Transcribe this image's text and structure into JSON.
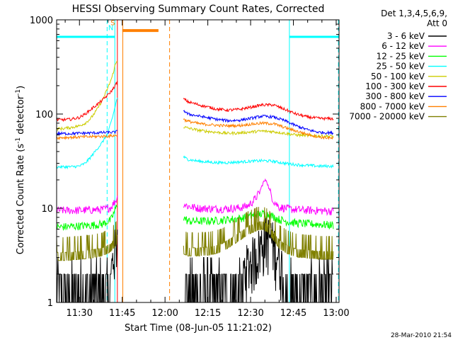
{
  "chart_data": {
    "type": "line",
    "title": "HESSI Observing Summary Count Rates, Corrected",
    "xlabel": "Start Time (08-Jun-05 11:21:02)",
    "ylabel_main": "Corrected Count Rate (s",
    "ylabel_sup1": "-1",
    "ylabel_mid": " detector",
    "ylabel_sup2": "-1",
    "ylabel_end": ")",
    "y_scale": "log",
    "ylim": [
      1,
      1000
    ],
    "xlim_minutes": [
      682,
      781
    ],
    "x_ticks": [
      {
        "m": 690,
        "label": "11:30"
      },
      {
        "m": 705,
        "label": "11:45"
      },
      {
        "m": 720,
        "label": "12:00"
      },
      {
        "m": 735,
        "label": "12:15"
      },
      {
        "m": 750,
        "label": "12:30"
      },
      {
        "m": 765,
        "label": "12:45"
      },
      {
        "m": 780,
        "label": "13:00"
      }
    ],
    "y_ticks": [
      {
        "v": 1,
        "label": "1"
      },
      {
        "v": 10,
        "label": "10"
      },
      {
        "v": 100,
        "label": "100"
      },
      {
        "v": 1000,
        "label": "1000"
      }
    ],
    "legend_title": [
      "Det 1,3,4,5,6,9,",
      "Att 0"
    ],
    "series": [
      {
        "name": "3 - 6 keV",
        "color": "#000000",
        "segments": [
          {
            "x": [
              682,
              686,
              690,
              694,
              698,
              701,
              702,
              703,
              703.3
            ],
            "y": [
              1.4,
              1.4,
              1.4,
              1.4,
              1.5,
              2.0,
              3.2,
              4.5,
              5.2
            ]
          },
          {
            "x": [
              726.5,
              730,
              735,
              740,
              744,
              747,
              749,
              751,
              753,
              755,
              757,
              760,
              763,
              767,
              772,
              777,
              779
            ],
            "y": [
              1.4,
              1.4,
              1.4,
              1.5,
              1.7,
              2.1,
              2.6,
              3.1,
              3.8,
              5.0,
              5.0,
              3.0,
              1.6,
              1.4,
              1.4,
              1.4,
              1.4
            ]
          }
        ]
      },
      {
        "name": "6 - 12 keV",
        "color": "#ff00ff",
        "segments": [
          {
            "x": [
              682,
              686,
              690,
              694,
              698,
              701,
              702,
              703,
              703.3
            ],
            "y": [
              9.5,
              9.5,
              9.5,
              9.6,
              9.7,
              10.2,
              11.3,
              12.5,
              13
            ]
          },
          {
            "x": [
              726.5,
              728,
              732,
              738,
              742,
              746,
              749,
              751,
              753,
              754.5,
              755.5,
              756.5,
              758,
              760,
              764,
              768,
              772,
              776,
              779
            ],
            "y": [
              11.2,
              10.5,
              10,
              9.9,
              9.9,
              10.1,
              10.6,
              12,
              14.5,
              19,
              20,
              16,
              12,
              10.3,
              9.8,
              9.6,
              9.5,
              9.4,
              9.3
            ]
          }
        ]
      },
      {
        "name": "12 - 25 keV",
        "color": "#00ff00",
        "segments": [
          {
            "x": [
              682,
              686,
              690,
              694,
              698,
              701,
              702,
              703,
              703.3
            ],
            "y": [
              6.3,
              6.4,
              6.5,
              6.6,
              6.8,
              7.5,
              8.8,
              10.5,
              11
            ]
          },
          {
            "x": [
              726.5,
              728,
              732,
              738,
              742,
              746,
              749,
              752,
              755,
              757,
              760,
              764,
              768,
              772,
              776,
              779
            ],
            "y": [
              8,
              7.3,
              7.3,
              7.4,
              7.6,
              7.8,
              8.1,
              8.6,
              8.8,
              8.4,
              7.6,
              7.1,
              6.9,
              6.8,
              6.7,
              6.6
            ]
          }
        ]
      },
      {
        "name": "25 - 50 keV",
        "color": "#00ffff",
        "segments": [
          {
            "x": [
              682,
              684,
              687,
              690,
              692,
              694,
              696,
              698,
              700,
              701.5,
              702.5,
              703.3
            ],
            "y": [
              27.5,
              27.5,
              27.5,
              28,
              30,
              35,
              42,
              50,
              63,
              90,
              120,
              150
            ]
          },
          {
            "x": [
              726.5,
              728,
              732,
              738,
              742,
              746,
              750,
              754,
              758,
              762,
              766,
              770,
              774,
              779
            ],
            "y": [
              35,
              33,
              31.5,
              30.5,
              30.5,
              31,
              31.5,
              32,
              31.5,
              30,
              29,
              28.5,
              28,
              28
            ]
          }
        ]
      },
      {
        "name": "50 - 100 keV",
        "color": "#cccc00",
        "segments": [
          {
            "x": [
              682,
              684,
              687,
              690,
              692,
              694,
              696,
              698,
              700,
              701.5,
              702.5,
              703.3
            ],
            "y": [
              70,
              70,
              72,
              75,
              80,
              90,
              110,
              140,
              190,
              250,
              330,
              370
            ]
          },
          {
            "x": [
              726.5,
              728,
              732,
              738,
              742,
              746,
              750,
              754,
              758,
              762,
              766,
              770,
              774,
              779
            ],
            "y": [
              73,
              71,
              67,
              64,
              62.5,
              63,
              64.5,
              66,
              65,
              62.5,
              60,
              59,
              58.5,
              58
            ]
          }
        ]
      },
      {
        "name": "100 - 300 keV",
        "color": "#ff0000",
        "segments": [
          {
            "x": [
              682,
              684,
              687,
              690,
              692,
              694,
              696,
              698,
              700,
              701.5,
              702.5,
              703.3
            ],
            "y": [
              87,
              87,
              88,
              92,
              100,
              112,
              125,
              140,
              160,
              180,
              200,
              220
            ]
          },
          {
            "x": [
              726.5,
              728,
              732,
              738,
              742,
              746,
              750,
              754,
              758,
              762,
              766,
              770,
              774,
              779
            ],
            "y": [
              145,
              135,
              125,
              113,
              110,
              112,
              118,
              125,
              125,
              112,
              100,
              93,
              90,
              89
            ]
          }
        ]
      },
      {
        "name": "300 - 800 keV",
        "color": "#0000ff",
        "segments": [
          {
            "x": [
              682,
              686,
              690,
              694,
              698,
              701,
              702,
              703,
              703.3
            ],
            "y": [
              62,
              62,
              62.5,
              63,
              63.5,
              64,
              64,
              65,
              65
            ]
          },
          {
            "x": [
              726.5,
              728,
              732,
              738,
              742,
              746,
              750,
              754,
              758,
              762,
              766,
              770,
              774,
              779
            ],
            "y": [
              110,
              100,
              95,
              88,
              85,
              86,
              90,
              95,
              93,
              85,
              75,
              68,
              64,
              63
            ]
          }
        ]
      },
      {
        "name": "800 - 7000 keV",
        "color": "#ff8000",
        "segments": [
          {
            "x": [
              682,
              686,
              690,
              694,
              698,
              701,
              702,
              703,
              703.3
            ],
            "y": [
              56,
              56.5,
              57,
              57.5,
              58,
              58.5,
              59,
              59,
              59
            ]
          },
          {
            "x": [
              726.5,
              728,
              732,
              738,
              742,
              746,
              750,
              754,
              758,
              762,
              766,
              770,
              774,
              779
            ],
            "y": [
              88,
              84,
              79,
              76,
              75,
              75.5,
              78,
              80,
              79,
              72,
              66,
              61,
              57,
              55
            ]
          }
        ]
      },
      {
        "name": "7000 - 20000 keV",
        "color": "#808000",
        "segments": [
          {
            "x": [
              682,
              686,
              690,
              694,
              698,
              701,
              702,
              703,
              703.3
            ],
            "y": [
              3.4,
              3.4,
              3.5,
              3.6,
              3.8,
              4.2,
              4.6,
              5.0,
              5.2
            ]
          },
          {
            "x": [
              726.5,
              728,
              732,
              736,
              740,
              743,
              746,
              749,
              752,
              754,
              756,
              758,
              760,
              763,
              766,
              770,
              774,
              779
            ],
            "y": [
              4,
              3.8,
              3.8,
              3.9,
              4.2,
              4.8,
              5.5,
              6.4,
              7,
              7.3,
              6.8,
              5.6,
              4.6,
              4,
              3.7,
              3.6,
              3.5,
              3.5
            ]
          }
        ]
      }
    ],
    "flag_bars": [
      {
        "color": "#00ffff",
        "y": 660,
        "x": [
          682,
          702.4
        ]
      },
      {
        "color": "#ff8000",
        "y": 770,
        "x": [
          705,
          717.7
        ]
      },
      {
        "color": "#00ffff",
        "y": 660,
        "x": [
          763.6,
          780.8
        ]
      }
    ],
    "vlines": [
      {
        "m": 699.7,
        "color": "#00ffff",
        "dash": true
      },
      {
        "m": 702.4,
        "color": "#00ffff",
        "dash": false
      },
      {
        "m": 703.3,
        "color": "#ff0000",
        "dash": false
      },
      {
        "m": 705.2,
        "color": "#ff8000",
        "dash": false
      },
      {
        "m": 721.6,
        "color": "#ff8000",
        "dash": true
      },
      {
        "m": 763.6,
        "color": "#00ffff",
        "dash": false
      },
      {
        "m": 780.8,
        "color": "#00ffff",
        "dash": true
      }
    ],
    "flag_letters": [
      {
        "text": "S",
        "color": "#ff8000",
        "m": 701.7,
        "v": 880
      },
      {
        "text": "N",
        "color": "#00ffff",
        "m": 701.0,
        "v": 780
      }
    ],
    "timestamp": "28-Mar-2010 21:54"
  }
}
